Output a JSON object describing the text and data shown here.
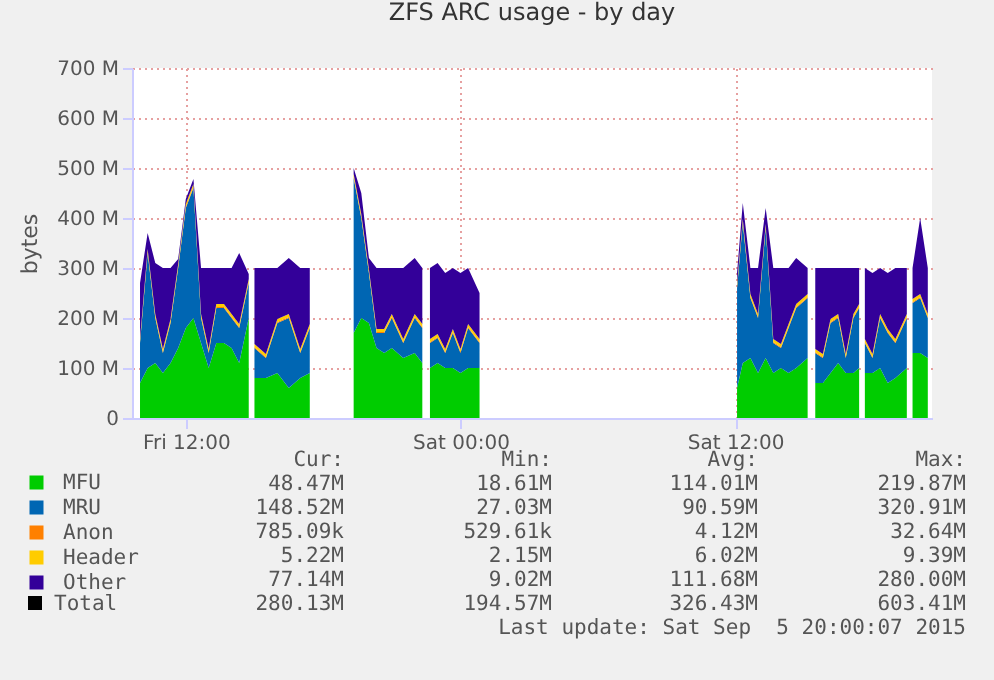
{
  "chart_data": {
    "type": "area",
    "title": "ZFS ARC usage - by day",
    "ylabel": "bytes",
    "stacked": true,
    "x": [
      "2015-09-04T10:00",
      "2015-09-04T10:20",
      "2015-09-04T10:40",
      "2015-09-04T11:00",
      "2015-09-04T11:20",
      "2015-09-04T11:40",
      "2015-09-04T12:00",
      "2015-09-04T12:20",
      "2015-09-04T12:40",
      "2015-09-04T13:00",
      "2015-09-04T13:20",
      "2015-09-04T13:40",
      "2015-09-04T14:00",
      "2015-09-04T14:20",
      "2015-09-04T14:45",
      "2015-09-04T14:52",
      "2015-09-04T15:00",
      "2015-09-04T15:30",
      "2015-09-04T16:00",
      "2015-09-04T16:30",
      "2015-09-04T17:00",
      "2015-09-04T17:25",
      "2015-09-04T18:00",
      "2015-09-04T19:20",
      "2015-09-04T19:40",
      "2015-09-04T20:00",
      "2015-09-04T20:20",
      "2015-09-04T20:40",
      "2015-09-04T21:00",
      "2015-09-04T21:30",
      "2015-09-04T22:00",
      "2015-09-04T22:20",
      "2015-09-04T22:30",
      "2015-09-04T22:40",
      "2015-09-04T23:00",
      "2015-09-04T23:20",
      "2015-09-04T23:40",
      "2015-09-05T00:00",
      "2015-09-05T00:20",
      "2015-09-05T00:50",
      "2015-09-05T06:00",
      "2015-09-05T12:05",
      "2015-09-05T12:20",
      "2015-09-05T12:40",
      "2015-09-05T13:00",
      "2015-09-05T13:20",
      "2015-09-05T13:40",
      "2015-09-05T14:00",
      "2015-09-05T14:20",
      "2015-09-05T14:40",
      "2015-09-05T15:10",
      "2015-09-05T15:20",
      "2015-09-05T15:30",
      "2015-09-05T15:50",
      "2015-09-05T16:10",
      "2015-09-05T16:30",
      "2015-09-05T16:50",
      "2015-09-05T17:10",
      "2015-09-05T17:25",
      "2015-09-05T17:32",
      "2015-09-05T17:40",
      "2015-09-05T18:00",
      "2015-09-05T18:20",
      "2015-09-05T18:40",
      "2015-09-05T19:00",
      "2015-09-05T19:30",
      "2015-09-05T19:37",
      "2015-09-05T19:45",
      "2015-09-05T20:05",
      "2015-09-05T20:25"
    ],
    "series": [
      {
        "name": "MFU",
        "color": "#00cc00",
        "values": [
          70,
          100,
          110,
          90,
          110,
          140,
          180,
          200,
          150,
          100,
          150,
          150,
          140,
          110,
          200,
          null,
          80,
          80,
          90,
          60,
          80,
          90,
          null,
          170,
          200,
          190,
          140,
          130,
          140,
          120,
          130,
          110,
          null,
          100,
          110,
          100,
          100,
          90,
          100,
          100,
          null,
          60,
          110,
          120,
          90,
          120,
          90,
          100,
          90,
          100,
          120,
          null,
          70,
          70,
          90,
          110,
          90,
          90,
          100,
          null,
          90,
          90,
          100,
          70,
          80,
          100,
          null,
          130,
          130,
          120
        ]
      },
      {
        "name": "MRU",
        "color": "#0066b3",
        "values": [
          80,
          230,
          90,
          40,
          80,
          160,
          240,
          260,
          50,
          30,
          70,
          70,
          60,
          70,
          70,
          null,
          60,
          40,
          100,
          140,
          50,
          90,
          null,
          310,
          200,
          100,
          30,
          40,
          60,
          30,
          70,
          70,
          null,
          50,
          50,
          30,
          70,
          40,
          80,
          50,
          null,
          200,
          280,
          120,
          110,
          260,
          60,
          40,
          90,
          120,
          120,
          null,
          60,
          50,
          100,
          90,
          30,
          110,
          120,
          null,
          60,
          30,
          100,
          100,
          70,
          100,
          null,
          100,
          110,
          80
        ]
      },
      {
        "name": "Anon",
        "color": "#ff8000",
        "values": [
          2,
          2,
          2,
          2,
          2,
          2,
          2,
          2,
          2,
          2,
          2,
          2,
          2,
          2,
          2,
          null,
          2,
          2,
          2,
          2,
          2,
          2,
          null,
          2,
          2,
          2,
          2,
          2,
          2,
          2,
          2,
          2,
          null,
          2,
          2,
          2,
          2,
          2,
          2,
          2,
          null,
          2,
          2,
          2,
          2,
          2,
          2,
          2,
          2,
          2,
          2,
          null,
          2,
          2,
          2,
          2,
          2,
          2,
          2,
          null,
          2,
          2,
          2,
          2,
          2,
          2,
          null,
          2,
          2,
          2
        ]
      },
      {
        "name": "Header",
        "color": "#ffcc00",
        "values": [
          6,
          6,
          6,
          6,
          6,
          6,
          6,
          6,
          6,
          6,
          6,
          6,
          6,
          6,
          6,
          null,
          6,
          6,
          6,
          6,
          6,
          6,
          null,
          6,
          6,
          6,
          6,
          6,
          6,
          6,
          6,
          6,
          null,
          6,
          6,
          6,
          6,
          6,
          6,
          6,
          null,
          6,
          6,
          6,
          6,
          6,
          6,
          6,
          6,
          6,
          6,
          null,
          6,
          6,
          6,
          6,
          6,
          6,
          6,
          null,
          6,
          6,
          6,
          6,
          6,
          6,
          null,
          6,
          6,
          6
        ]
      },
      {
        "name": "Other",
        "color": "#330099",
        "values": [
          112,
          32,
          102,
          162,
          102,
          10,
          10,
          10,
          92,
          162,
          72,
          72,
          92,
          142,
          10,
          null,
          152,
          172,
          102,
          112,
          162,
          112,
          null,
          12,
          42,
          22,
          122,
          122,
          92,
          142,
          112,
          112,
          null,
          142,
          142,
          152,
          122,
          152,
          112,
          92,
          null,
          22,
          32,
          52,
          92,
          32,
          142,
          152,
          112,
          92,
          52,
          null,
          162,
          172,
          102,
          92,
          172,
          92,
          72,
          null,
          142,
          162,
          92,
          112,
          142,
          92,
          null,
          62,
          152,
          92
        ]
      }
    ],
    "xlim": [
      "2015-09-04T09:39",
      "2015-09-05T20:36"
    ],
    "xticks": [
      {
        "value": "2015-09-04T12:00",
        "label": "Fri 12:00"
      },
      {
        "value": "2015-09-05T00:00",
        "label": "Sat 00:00"
      },
      {
        "value": "2015-09-05T12:00",
        "label": "Sat 12:00"
      }
    ],
    "ylim": [
      0,
      700
    ],
    "yticks": [
      {
        "value": 0,
        "label": "0"
      },
      {
        "value": 100,
        "label": "100 M"
      },
      {
        "value": 200,
        "label": "200 M"
      },
      {
        "value": 300,
        "label": "300 M"
      },
      {
        "value": 400,
        "label": "400 M"
      },
      {
        "value": 500,
        "label": "500 M"
      },
      {
        "value": 600,
        "label": "600 M"
      },
      {
        "value": 700,
        "label": "700 M"
      }
    ],
    "grid": true,
    "legend": "bottom",
    "annotations": [
      "Cur:",
      "Min:",
      "Avg:",
      "Max:",
      "48.47M",
      "18.61M",
      "114.01M",
      "219.87M",
      "148.52M",
      "27.03M",
      "90.59M",
      "320.91M",
      "785.09k",
      "529.61k",
      "4.12M",
      "32.64M",
      "5.22M",
      "2.15M",
      "6.02M",
      "9.39M",
      "77.14M",
      "9.02M",
      "111.68M",
      "280.00M",
      "Total",
      "280.13M",
      "194.57M",
      "326.43M",
      "603.41M",
      "Last update: Sat Sep  5 20:00:07 2015"
    ]
  }
}
